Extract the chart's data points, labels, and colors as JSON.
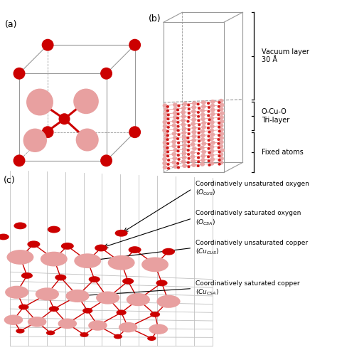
{
  "fig_width": 4.74,
  "fig_height": 4.99,
  "dpi": 100,
  "bg_color": "#ffffff",
  "label_a": "(a)",
  "label_b": "(b)",
  "label_c": "(c)",
  "cu_color": "#e8a0a0",
  "o_color": "#cc0000",
  "bond_color": "#cc0000",
  "frame_color": "#999999",
  "vacuum_text": "Vacuum layer\n30 Å",
  "trilayer_text": "O-Cu-O\nTri-layer",
  "fixed_text": "Fixed atoms",
  "c_labels": [
    "Coordinatively unsaturated oxygen\n$(O_{CUS})$",
    "Coordinatively saturated oxygen\n$(O_{CSA})$",
    "Coordinatively unsaturated copper\n$(Cu_{CUS})$",
    "Coordinatively saturated copper\n$(Cu_{CSA})$"
  ]
}
